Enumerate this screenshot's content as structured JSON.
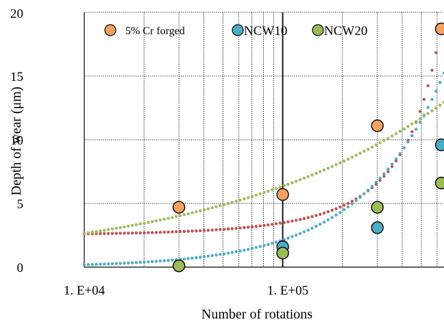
{
  "chart_data": {
    "type": "scatter",
    "title": "",
    "xlabel": "Number of rotations",
    "ylabel": "Depth of wear (μm)",
    "x_scale": "log",
    "xlim": [
      10000,
      650000
    ],
    "ylim": [
      0,
      20
    ],
    "y_ticks": [
      "0",
      "5",
      "10",
      "15",
      "20"
    ],
    "x_ticks": [
      {
        "value": 10000,
        "label": "1. E+04"
      },
      {
        "value": 100000,
        "label": "1. E+05"
      }
    ],
    "grid": "dotted log gridlines",
    "legend_position": "top",
    "series": [
      {
        "name": "5% Cr forged",
        "color": "#f4a261",
        "trend_color": "#c0504d",
        "points": [
          [
            30000,
            4.7
          ],
          [
            100000,
            5.7
          ],
          [
            300000,
            11.1
          ],
          [
            630000,
            18.7
          ]
        ],
        "trend": {
          "type": "exponential",
          "a": 2.53,
          "b": 3.2e-06
        }
      },
      {
        "name": "NCW10",
        "color": "#4bacc6",
        "trend_color": "#4bacc6",
        "points": [
          [
            30000,
            0.1
          ],
          [
            100000,
            1.6
          ],
          [
            300000,
            3.1
          ],
          [
            630000,
            9.6
          ]
        ],
        "trend": {
          "type": "power",
          "k": 1.2e-05,
          "p": 1.05
        }
      },
      {
        "name": "NCW20",
        "color": "#9bbb59",
        "trend_color": "#9bbb59",
        "points": [
          [
            30000,
            0.1
          ],
          [
            100000,
            1.1
          ],
          [
            300000,
            4.7
          ],
          [
            630000,
            6.6
          ]
        ],
        "trend": {
          "type": "power",
          "k": 0.08,
          "p": 0.38
        }
      }
    ]
  }
}
